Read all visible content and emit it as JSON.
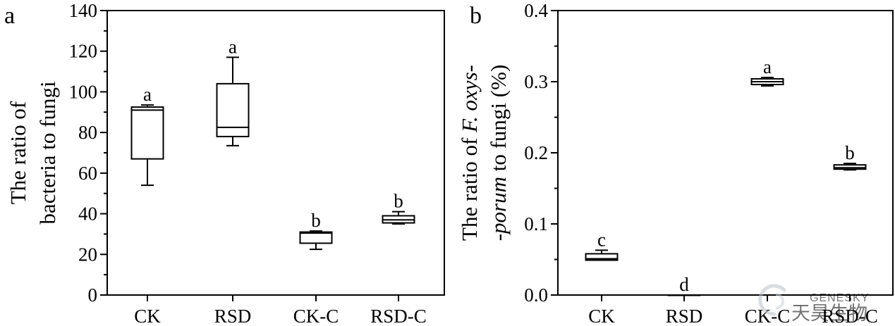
{
  "chart_data": [
    {
      "panel_label": "a",
      "type": "box",
      "ylabel_lines": [
        "The ratio of",
        "bacteria to fungi"
      ],
      "ylim": [
        0,
        140
      ],
      "yticks": [
        0,
        20,
        40,
        60,
        80,
        100,
        120,
        140
      ],
      "yminor": [
        10,
        30,
        50,
        70,
        90,
        110,
        130
      ],
      "categories": [
        "CK",
        "RSD",
        "CK-C",
        "RSD-C"
      ],
      "boxes": [
        {
          "category": "CK",
          "min": 54,
          "q1": 67,
          "median": 91,
          "q3": 92.5,
          "max": 93.5,
          "sig": "a"
        },
        {
          "category": "RSD",
          "min": 73.5,
          "q1": 78,
          "median": 82.5,
          "q3": 104,
          "max": 117,
          "sig": "a"
        },
        {
          "category": "CK-C",
          "min": 22.5,
          "q1": 25.5,
          "median": 30.5,
          "q3": 31,
          "max": 31.5,
          "sig": "b"
        },
        {
          "category": "RSD-C",
          "min": 35,
          "q1": 35.5,
          "median": 37,
          "q3": 39,
          "max": 41,
          "sig": "b"
        }
      ]
    },
    {
      "panel_label": "b",
      "type": "box",
      "ylabel_line1_pre": "The ratio of ",
      "ylabel_line1_italic": "F. oxys-",
      "ylabel_line2_italic": "-porum",
      "ylabel_line2_post": " to fungi (%)",
      "ylim": [
        0,
        0.4
      ],
      "yticks": [
        "0.0",
        "0.1",
        "0.2",
        "0.3",
        "0.4"
      ],
      "yminor": [
        0.05,
        0.15,
        0.25,
        0.35
      ],
      "categories": [
        "CK",
        "RSD",
        "CK-C",
        "RSD-C"
      ],
      "boxes": [
        {
          "category": "CK",
          "min": 0.049,
          "q1": 0.049,
          "median": 0.051,
          "q3": 0.058,
          "max": 0.063,
          "sig": "c"
        },
        {
          "category": "RSD",
          "min": 0.0,
          "q1": 0.0,
          "median": 0.0,
          "q3": 0.0,
          "max": 0.0,
          "sig": "d"
        },
        {
          "category": "CK-C",
          "min": 0.294,
          "q1": 0.296,
          "median": 0.3,
          "q3": 0.304,
          "max": 0.306,
          "sig": "a"
        },
        {
          "category": "RSD-C",
          "min": 0.176,
          "q1": 0.177,
          "median": 0.179,
          "q3": 0.183,
          "max": 0.185,
          "sig": "b"
        }
      ]
    }
  ],
  "watermark": {
    "latin": "GENESKY",
    "chinese": "天昊生物"
  }
}
